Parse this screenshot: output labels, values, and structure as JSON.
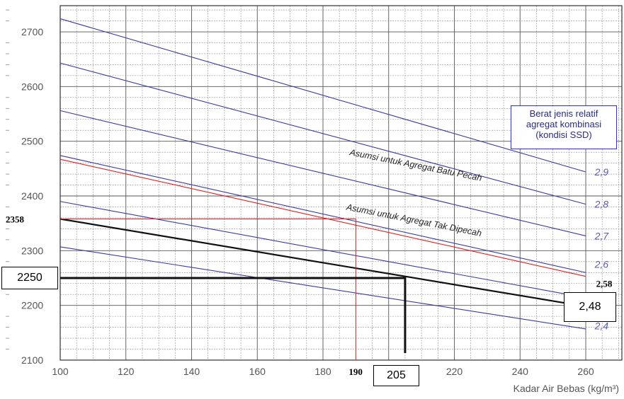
{
  "chart_data": {
    "type": "line",
    "xlabel": "Kadar Air Bebas (kg/m³)",
    "ylabel": "",
    "xlim": [
      100,
      260
    ],
    "ylim": [
      2100,
      2700
    ],
    "x_ticks": [
      "100",
      "120",
      "140",
      "160",
      "180",
      "200",
      "220",
      "240",
      "260"
    ],
    "y_ticks": [
      "2100",
      "2200",
      "2300",
      "2400",
      "2500",
      "2600",
      "2700"
    ],
    "grid": true,
    "legend": {
      "title_lines": [
        "Berat jenis relatif",
        "agregat kombinasi",
        "(kondisi SSD)"
      ],
      "placement": "right"
    },
    "series": [
      {
        "name": "2,9",
        "color": "#3a3aa0",
        "x": [
          100,
          260
        ],
        "y": [
          2724,
          2444
        ]
      },
      {
        "name": "2,8",
        "color": "#3a3aa0",
        "x": [
          100,
          260
        ],
        "y": [
          2643,
          2385
        ]
      },
      {
        "name": "2,7",
        "color": "#3a3aa0",
        "x": [
          100,
          260
        ],
        "y": [
          2556,
          2327
        ]
      },
      {
        "name": "2,6",
        "color": "#3a3aa0",
        "x": [
          100,
          260
        ],
        "y": [
          2474,
          2260
        ]
      },
      {
        "name": "",
        "color": "#3a3aa0",
        "x": [
          100,
          260
        ],
        "y": [
          2390,
          2214
        ]
      },
      {
        "name": "2,4",
        "color": "#3a3aa0",
        "x": [
          100,
          260
        ],
        "y": [
          2307,
          2157
        ]
      },
      {
        "name": "",
        "color": "#e02020",
        "x": [
          100,
          260
        ],
        "y": [
          2467,
          2253
        ]
      },
      {
        "name": "2,58",
        "color": "#111111",
        "x": [
          100,
          260
        ],
        "y": [
          2358,
          2198
        ]
      }
    ],
    "series_labels": [
      {
        "text": "2,9",
        "x": 261,
        "y": 2444,
        "style": "blue"
      },
      {
        "text": "2,8",
        "x": 261,
        "y": 2385,
        "style": "blue"
      },
      {
        "text": "2,7",
        "x": 261,
        "y": 2327,
        "style": "blue"
      },
      {
        "text": "2,6",
        "x": 261,
        "y": 2275,
        "style": "blue"
      },
      {
        "text": "2,58",
        "x": 261,
        "y": 2240,
        "style": "bold"
      },
      {
        "text": "2,4",
        "x": 261,
        "y": 2163,
        "style": "blue"
      }
    ],
    "annotations": [
      {
        "text": "Asumsi untuk Agregat Batu Pecah",
        "x": 188,
        "y": 2475,
        "angle": 11.2
      },
      {
        "text": "Asumsi untuk Agregat Tak Dipecah",
        "x": 187,
        "y": 2375,
        "angle": 11.2
      }
    ],
    "guides": [
      {
        "color": "#e02020",
        "points": [
          [
            100,
            2358
          ],
          [
            190,
            2358
          ],
          [
            190,
            2100
          ]
        ],
        "width": 1
      },
      {
        "color": "#111111",
        "points": [
          [
            100,
            2250
          ],
          [
            205,
            2250
          ],
          [
            205,
            2113
          ]
        ],
        "width": 3
      }
    ],
    "marked_values": {
      "y_2358": "2358",
      "x_190": "190",
      "box_2250": "2250",
      "box_205": "205",
      "box_248": "2,48"
    }
  }
}
